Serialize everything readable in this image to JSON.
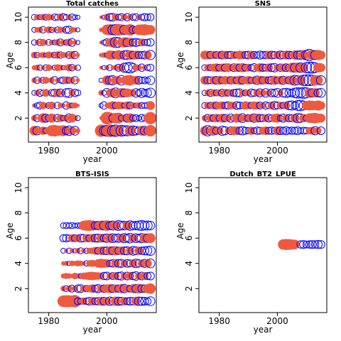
{
  "chart_data": [
    {
      "type": "bubble",
      "title": "Total catches",
      "xlabel": "year",
      "ylabel": "Age",
      "xlim": [
        1973,
        2017
      ],
      "ylim": [
        0.1,
        10.8
      ],
      "xticks": [
        1980,
        2000
      ],
      "yticks": [
        2,
        4,
        6,
        8,
        10
      ],
      "pos_color": "#ee5a3f",
      "neg_color": "#0000ff",
      "years": [
        1975,
        1976,
        1977,
        1978,
        1979,
        1980,
        1981,
        1982,
        1983,
        1984,
        1985,
        1986,
        1987,
        1988,
        1989,
        1990,
        1991,
        1992,
        1993,
        1994,
        1995,
        1996,
        1997,
        1998,
        1999,
        2000,
        2001,
        2002,
        2003,
        2004,
        2005,
        2006,
        2007,
        2008,
        2009,
        2010,
        2011,
        2012,
        2013,
        2014,
        2015
      ],
      "ages": [
        1,
        2,
        3,
        4,
        5,
        6,
        7,
        8,
        9,
        10
      ],
      "residuals": [
        [
          1.5,
          -1.2,
          0.8,
          1.1,
          -0.6,
          0.9,
          2.0,
          2.2,
          1.8,
          1.6,
          1.9,
          -1.0,
          -1.5,
          1.2,
          -1.3,
          0.4,
          null,
          null,
          null,
          null,
          null,
          null,
          null,
          2.5,
          -1.4,
          -2.0,
          2.6,
          -1.8,
          -2.2,
          2.0,
          -1.9,
          -1.6,
          -1.7,
          1.8,
          -1.5,
          -1.2,
          -1.0,
          1.6,
          -1.3,
          -0.9,
          2.2
        ],
        [
          0.6,
          -0.8,
          0.5,
          1.5,
          -1.1,
          -0.7,
          1.4,
          0.3,
          -0.9,
          1.0,
          -0.5,
          0.8,
          -1.2,
          1.3,
          0.6,
          -0.4,
          null,
          null,
          null,
          null,
          null,
          null,
          null,
          0.2,
          0.8,
          2.6,
          2.2,
          -1.0,
          1.8,
          1.9,
          -0.6,
          0.9,
          -1.1,
          1.5,
          -0.7,
          -0.8,
          -0.4,
          -0.9,
          -0.6,
          1.2,
          2.5
        ],
        [
          0.3,
          -0.5,
          -0.8,
          0.9,
          0.4,
          -0.6,
          1.0,
          0.2,
          -0.7,
          0.5,
          0.3,
          -0.9,
          0.7,
          -0.4,
          0.6,
          0.2,
          null,
          null,
          null,
          null,
          null,
          null,
          null,
          -0.3,
          -0.9,
          0.4,
          0.8,
          1.2,
          -0.7,
          1.0,
          0.9,
          -0.5,
          1.1,
          -0.8,
          0.6,
          -0.4,
          0.7,
          -0.6,
          -0.5,
          -0.7,
          1.3
        ],
        [
          -0.4,
          0.6,
          -0.8,
          -0.5,
          1.0,
          0.3,
          -0.7,
          -0.9,
          1.1,
          -1.0,
          0.4,
          -1.2,
          -1.4,
          0.8,
          -0.9,
          -0.6,
          null,
          null,
          null,
          null,
          null,
          null,
          null,
          0.5,
          -0.4,
          -1.3,
          1.0,
          1.4,
          -1.6,
          1.2,
          1.5,
          -1.1,
          1.3,
          1.0,
          0.8,
          -1.2,
          -0.7,
          -1.4,
          -0.8,
          -1.0,
          -1.5
        ],
        [
          0.5,
          -0.7,
          0.4,
          -0.6,
          0.8,
          0.3,
          0.6,
          -0.9,
          0.4,
          -0.5,
          -0.8,
          1.0,
          -0.6,
          0.7,
          -0.9,
          0.3,
          null,
          null,
          null,
          null,
          null,
          null,
          null,
          -0.3,
          0.2,
          1.5,
          -1.2,
          -1.4,
          1.2,
          1.0,
          -1.5,
          0.9,
          1.6,
          1.8,
          1.1,
          1.2,
          -1.0,
          -0.7,
          -0.8,
          -0.5,
          -1.2
        ],
        [
          0.4,
          0.6,
          -0.5,
          0.3,
          -0.6,
          0.7,
          0.2,
          -0.4,
          0.8,
          0.6,
          -0.3,
          0.5,
          0.9,
          -0.7,
          0.4,
          -0.5,
          null,
          null,
          null,
          null,
          null,
          null,
          null,
          0.2,
          -0.3,
          0.4,
          -0.6,
          0.3,
          0.5,
          -0.8,
          0.9,
          -1.4,
          -1.6,
          -1.9,
          -1.2,
          0.8,
          0.6,
          -0.9,
          0.5,
          -0.6,
          -0.8
        ],
        [
          0.7,
          -0.5,
          0.4,
          0.6,
          -0.3,
          0.8,
          0.5,
          -0.6,
          0.9,
          -0.7,
          0.6,
          0.4,
          -0.8,
          1.0,
          -0.9,
          0.3,
          null,
          null,
          null,
          null,
          null,
          null,
          null,
          0.3,
          0.5,
          -0.4,
          1.4,
          1.3,
          -0.8,
          1.6,
          1.2,
          -1.2,
          -1.4,
          1.5,
          -1.0,
          1.3,
          -0.9,
          -0.8,
          -1.0,
          1.1,
          -1.4
        ],
        [
          -0.5,
          0.4,
          -0.7,
          0.8,
          0.3,
          -0.6,
          0.5,
          -0.4,
          0.7,
          -0.8,
          0.6,
          -0.5,
          0.9,
          -1.0,
          0.4,
          -0.3,
          null,
          null,
          null,
          null,
          null,
          null,
          null,
          0.2,
          -0.4,
          -0.9,
          1.2,
          1.6,
          -1.8,
          -1.5,
          1.3,
          1.7,
          -1.2,
          1.4,
          -0.9,
          -1.1,
          -0.8,
          1.0,
          -0.6,
          -0.7,
          -0.9
        ],
        [
          -0.4,
          0.5,
          0.6,
          -0.7,
          0.3,
          0.8,
          -0.5,
          0.4,
          -0.6,
          0.7,
          0.5,
          -0.8,
          -0.9,
          0.6,
          0.4,
          -0.3,
          null,
          null,
          null,
          null,
          null,
          null,
          null,
          0.3,
          0.5,
          1.8,
          2.0,
          -1.6,
          -1.8,
          2.2,
          1.9,
          -1.4,
          1.7,
          2.1,
          -1.0,
          -0.8,
          1.8,
          1.9,
          2.0,
          1.6,
          1.5
        ],
        [
          -0.5,
          0.6,
          -0.4,
          0.7,
          -0.6,
          0.8,
          0.5,
          -0.7,
          -0.6,
          0.9,
          -0.8,
          -0.5,
          0.6,
          -0.7,
          -0.4,
          -0.3,
          null,
          null,
          null,
          null,
          null,
          null,
          null,
          0.2,
          -0.3,
          0.8,
          -0.9,
          -1.0,
          0.9,
          -0.6,
          -0.8,
          0.7,
          -0.9,
          0.6,
          -0.7,
          -0.8,
          0.5,
          -0.6,
          -0.9,
          -0.7,
          -0.8
        ]
      ]
    },
    {
      "type": "bubble",
      "title": "SNS",
      "xlabel": "year",
      "ylabel": "Age",
      "xlim": [
        1973,
        2017
      ],
      "ylim": [
        0.1,
        10.8
      ],
      "xticks": [
        1980,
        2000
      ],
      "yticks": [
        2,
        4,
        6,
        8,
        10
      ],
      "pos_color": "#ee5a3f",
      "neg_color": "#0000ff",
      "years": [
        1975,
        1976,
        1977,
        1978,
        1979,
        1980,
        1981,
        1982,
        1983,
        1984,
        1985,
        1986,
        1987,
        1988,
        1989,
        1990,
        1991,
        1992,
        1993,
        1994,
        1995,
        1996,
        1997,
        1998,
        1999,
        2000,
        2001,
        2002,
        2003,
        2004,
        2005,
        2006,
        2007,
        2008,
        2009,
        2010,
        2011,
        2012,
        2013,
        2014,
        2015
      ],
      "ages": [
        1,
        2,
        3,
        4,
        5,
        6,
        7
      ],
      "residuals": [
        [
          1.4,
          -1.8,
          -1.2,
          1.6,
          -0.9,
          1.0,
          -1.4,
          -1.1,
          0.6,
          -1.0,
          1.3,
          1.2,
          -0.9,
          -1.2,
          -0.8,
          -0.7,
          1.1,
          -0.6,
          -0.9,
          -0.8,
          1.0,
          1.2,
          -0.8,
          -0.9,
          -0.7,
          1.3,
          -1.0,
          -0.8,
          -1.1,
          -0.7,
          -0.9,
          -0.8,
          -1.0,
          -0.6,
          -0.8,
          -0.7,
          0.9,
          1.0,
          -1.1,
          0.8,
          -1.0
        ],
        [
          0.6,
          -0.9,
          1.0,
          -0.8,
          1.2,
          -0.7,
          1.3,
          -0.9,
          0.8,
          -1.1,
          -0.6,
          1.4,
          1.2,
          -1.3,
          1.0,
          -0.8,
          1.1,
          -1.2,
          1.3,
          -0.9,
          -0.8,
          1.0,
          -1.0,
          -0.7,
          1.2,
          1.4,
          -0.6,
          -1.1,
          1.0,
          -0.9,
          -0.8,
          1.3,
          -1.4,
          -1.2,
          1.1,
          -0.7,
          1.5,
          1.6,
          1.8,
          1.4,
          1.3
        ],
        [
          -0.6,
          0.8,
          -0.7,
          1.0,
          -0.8,
          0.9,
          1.1,
          -0.7,
          -0.9,
          1.0,
          0.8,
          -1.0,
          -0.8,
          -0.6,
          1.2,
          0.9,
          -0.7,
          1.1,
          1.0,
          -0.8,
          0.7,
          -0.9,
          -0.6,
          1.0,
          -1.1,
          -0.8,
          0.9,
          -0.7,
          1.0,
          -1.2,
          -1.4,
          -0.9,
          -1.6,
          -1.8,
          -1.3,
          1.4,
          1.6,
          1.5,
          1.3,
          1.7,
          1.2
        ],
        [
          -0.5,
          0.7,
          -0.8,
          0.9,
          -0.6,
          0.8,
          -0.9,
          1.0,
          -0.7,
          0.9,
          -0.8,
          -1.0,
          -1.1,
          0.8,
          -0.6,
          0.7,
          -1.0,
          -0.8,
          0.9,
          -1.1,
          0.8,
          -1.2,
          0.7,
          -1.0,
          -0.9,
          -1.3,
          0.6,
          -1.2,
          -1.4,
          -1.1,
          -0.9,
          -1.5,
          -1.8,
          -1.6,
          -2.0,
          -1.7,
          1.5,
          -1.2,
          1.4,
          -1.1,
          -1.3
        ],
        [
          1.2,
          -0.9,
          -0.8,
          1.1,
          -1.0,
          1.3,
          -0.8,
          1.2,
          1.0,
          -0.9,
          1.1,
          -0.8,
          1.4,
          -1.0,
          0.9,
          1.2,
          -0.7,
          1.0,
          -1.2,
          1.3,
          -0.9,
          1.1,
          -0.8,
          -1.0,
          1.4,
          -0.7,
          1.2,
          -1.1,
          1.0,
          -0.9,
          1.5,
          -1.6,
          -1.3,
          1.6,
          -1.8,
          -2.0,
          -1.9,
          -1.7,
          1.8,
          1.5,
          -1.4
        ],
        [
          -0.6,
          0.8,
          -0.7,
          1.0,
          1.2,
          -0.8,
          1.1,
          -0.9,
          1.3,
          0.8,
          -1.0,
          1.2,
          -0.9,
          1.4,
          -0.8,
          1.0,
          -0.7,
          -1.1,
          0.9,
          1.3,
          -0.9,
          -0.8,
          1.2,
          -1.0,
          -1.2,
          0.8,
          -0.9,
          1.1,
          -1.0,
          -0.8,
          1.6,
          -1.3,
          1.7,
          -1.5,
          1.4,
          -1.8,
          -1.9,
          -2.0,
          -1.6,
          1.5,
          1.3
        ],
        [
          1.3,
          1.2,
          -0.9,
          1.0,
          -0.8,
          1.1,
          -1.0,
          1.2,
          -0.8,
          -0.9,
          1.0,
          -0.7,
          1.3,
          1.1,
          -0.8,
          -1.0,
          1.2,
          -0.9,
          -0.7,
          -1.1,
          -0.8,
          -0.9,
          1.2,
          -1.0,
          -0.8,
          1.0,
          -1.1,
          -0.9,
          1.3,
          -1.0,
          -0.8,
          1.4,
          -1.1,
          -1.3,
          1.6,
          -1.5,
          -2.2,
          1.8,
          -1.4,
          1.7,
          1.3
        ]
      ]
    },
    {
      "type": "bubble",
      "title": "BTS-ISIS",
      "xlabel": "year",
      "ylabel": "Age",
      "xlim": [
        1973,
        2017
      ],
      "ylim": [
        0.1,
        10.8
      ],
      "xticks": [
        1980,
        2000
      ],
      "yticks": [
        2,
        4,
        6,
        8,
        10
      ],
      "pos_color": "#ee5a3f",
      "neg_color": "#0000ff",
      "years": [
        1985,
        1986,
        1987,
        1988,
        1989,
        1990,
        1991,
        1992,
        1993,
        1994,
        1995,
        1996,
        1997,
        1998,
        1999,
        2000,
        2001,
        2002,
        2003,
        2004,
        2005,
        2006,
        2007,
        2008,
        2009,
        2010,
        2011,
        2012,
        2013,
        2014,
        2015
      ],
      "ages": [
        1,
        2,
        3,
        4,
        5,
        6,
        7
      ],
      "residuals": [
        [
          2.2,
          2.4,
          2.3,
          2.1,
          2.5,
          -0.8,
          -0.6,
          0.9,
          -0.7,
          -1.0,
          1.2,
          -0.8,
          -0.9,
          1.3,
          -1.0,
          1.1,
          -1.2,
          -0.9,
          1.4,
          -1.1,
          -1.0,
          1.2,
          -0.8,
          -1.0,
          -0.9,
          1.3,
          -1.2,
          -1.1,
          -1.0,
          -0.8,
          -1.3
        ],
        [
          0.5,
          -0.6,
          0.7,
          -0.8,
          0.6,
          -0.9,
          -1.0,
          0.8,
          -0.7,
          0.9,
          1.2,
          -0.8,
          -1.1,
          1.0,
          -0.9,
          1.2,
          1.3,
          -1.0,
          1.1,
          -0.9,
          1.4,
          -1.2,
          1.0,
          -0.8,
          1.3,
          -1.1,
          1.5,
          -1.0,
          -0.9,
          1.4,
          1.8
        ],
        [
          0.4,
          0.6,
          0.5,
          0.3,
          0.7,
          0.5,
          -0.4,
          0.8,
          0.9,
          1.1,
          1.2,
          1.0,
          0.9,
          0.8,
          -0.9,
          -1.0,
          0.7,
          -0.8,
          1.0,
          -0.9,
          -1.1,
          0.8,
          -1.0,
          1.1,
          -0.9,
          -1.2,
          0.9,
          -1.0,
          1.0,
          -0.8,
          -1.0
        ],
        [
          0.3,
          0.4,
          -0.3,
          0.5,
          0.4,
          0.6,
          0.5,
          0.3,
          -0.5,
          0.7,
          0.8,
          0.6,
          1.2,
          1.4,
          1.3,
          1.1,
          -0.7,
          -0.9,
          1.2,
          -1.0,
          -1.1,
          0.9,
          -1.0,
          -0.8,
          1.1,
          -1.2,
          -0.9,
          1.0,
          -1.1,
          1.2,
          -1.3
        ],
        [
          -0.4,
          0.3,
          -0.5,
          0.4,
          -0.3,
          0.5,
          -0.6,
          0.4,
          -0.5,
          0.6,
          0.7,
          1.0,
          -0.8,
          1.2,
          -0.9,
          -1.0,
          1.3,
          -1.1,
          1.4,
          -0.9,
          1.2,
          -1.0,
          -1.1,
          1.1,
          -1.3,
          -1.0,
          1.2,
          -0.9,
          -1.1,
          -1.2,
          -1.4
        ],
        [
          -0.8,
          -0.9,
          -0.7,
          1.0,
          -0.8,
          0.9,
          -1.0,
          -0.9,
          1.1,
          -0.8,
          1.2,
          -1.0,
          -1.1,
          1.3,
          -0.9,
          -1.2,
          1.4,
          -1.3,
          -1.0,
          -1.2,
          1.3,
          -1.4,
          -1.1,
          -1.5,
          1.2,
          -1.3,
          -1.0,
          -1.4,
          1.5,
          -1.2,
          1.6
        ],
        [
          -0.5,
          -0.6,
          -0.5,
          -0.6,
          -0.4,
          -0.5,
          -0.6,
          1.5,
          1.8,
          1.9,
          1.7,
          -1.0,
          -1.2,
          1.6,
          -1.3,
          1.8,
          -1.1,
          -1.4,
          1.5,
          -1.6,
          -1.2,
          -1.3,
          1.4,
          -1.5,
          -1.1,
          -1.2,
          -1.4,
          -1.6,
          -1.3,
          -1.4,
          -1.2
        ]
      ]
    },
    {
      "type": "bubble",
      "title": "Dutch_BT2_LPUE",
      "xlabel": "year",
      "ylabel": "Age",
      "xlim": [
        1973,
        2017
      ],
      "ylim": [
        0.1,
        10.8
      ],
      "xticks": [
        1980,
        2000
      ],
      "yticks": [
        2,
        4,
        6,
        8,
        10
      ],
      "pos_color": "#ee5a3f",
      "neg_color": "#0000ff",
      "years": [
        2002,
        2003,
        2004,
        2005,
        2006,
        2008,
        2009,
        2010,
        2011,
        2012,
        2013,
        2014,
        2015
      ],
      "ages": [
        5.5
      ],
      "residuals": [
        [
          1.8,
          2.0,
          1.9,
          1.7,
          1.5,
          -0.9,
          -1.0,
          -0.8,
          -0.9,
          -1.0,
          -0.9,
          -1.1,
          -1.0
        ]
      ]
    }
  ]
}
